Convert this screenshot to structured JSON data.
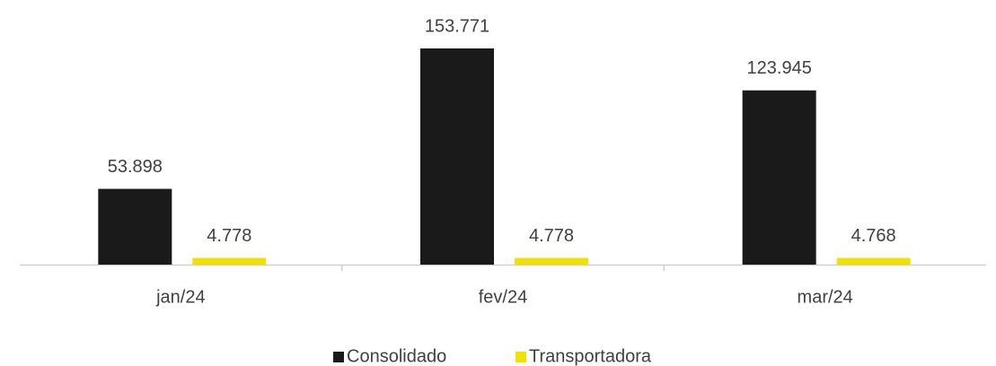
{
  "chart_data": {
    "type": "bar",
    "categories": [
      "jan/24",
      "fev/24",
      "mar/24"
    ],
    "series": [
      {
        "name": "Consolidado",
        "color": "#1a1a1a",
        "values": [
          53898,
          153771,
          123945
        ],
        "value_labels": [
          "53.898",
          "153.771",
          "123.945"
        ]
      },
      {
        "name": "Transportadora",
        "color": "#f2e100",
        "values": [
          4778,
          4778,
          4768
        ],
        "value_labels": [
          "4.778",
          "4.778",
          "4.768"
        ]
      }
    ],
    "legend": "bottom"
  }
}
